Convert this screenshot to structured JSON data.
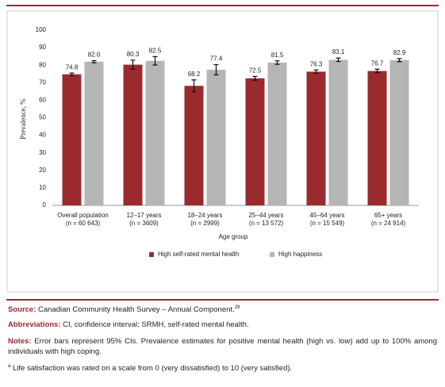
{
  "chart_data": {
    "type": "bar",
    "ylabel": "Prevalence, %",
    "xlabel": "Age group",
    "categories": [
      "Overall population",
      "12–17 years",
      "18–24 years",
      "25–44 years",
      "45–64 years",
      "65+ years"
    ],
    "category_subtitles": [
      "(n = 60 643)",
      "(n = 3609)",
      "(n = 2999)",
      "(n = 13 572)",
      "(n = 15 549)",
      "(n = 24 914)"
    ],
    "series": [
      {
        "name": "High self-rated mental health",
        "color": "#9b2a2e",
        "values": [
          74.8,
          80.3,
          68.2,
          72.5,
          76.3,
          76.7
        ],
        "value_labels": [
          "74.8",
          "80.3",
          "68.2",
          "72.5",
          "76.3",
          "76.7"
        ],
        "errors": [
          0.7,
          2.6,
          3.4,
          1.1,
          1.0,
          1.0
        ]
      },
      {
        "name": "High happiness",
        "color": "#b5b5b5",
        "values": [
          82.0,
          82.5,
          77.4,
          81.5,
          83.1,
          82.9
        ],
        "value_labels": [
          "82.0",
          "82.5",
          "77.4",
          "81.5",
          "83.1",
          "82.9"
        ],
        "errors": [
          0.6,
          2.4,
          2.9,
          1.0,
          1.0,
          0.9
        ]
      }
    ],
    "ylim": [
      0,
      100
    ],
    "yticks": [
      0,
      10,
      20,
      30,
      40,
      50,
      60,
      70,
      80,
      90,
      100
    ],
    "grid": false,
    "legend": "bottom"
  },
  "footer": {
    "source": {
      "label": "Source:",
      "text": "Canadian Community Health Survey – Annual Component.",
      "sup": "29"
    },
    "abbreviations": {
      "label": "Abbreviations:",
      "text": "CI, confidence interval; SRMH, self-rated mental health."
    },
    "notes": {
      "label": "Notes:",
      "text": "Error bars represent 95% CIs. Prevalence estimates for positive mental health (high vs. low) add up to 100% among individuals with high coping."
    },
    "footnote": {
      "marker": "a",
      "text": "Life satisfaction was rated on a scale from 0 (very dissatisfied) to 10 (very satisfied)."
    }
  }
}
